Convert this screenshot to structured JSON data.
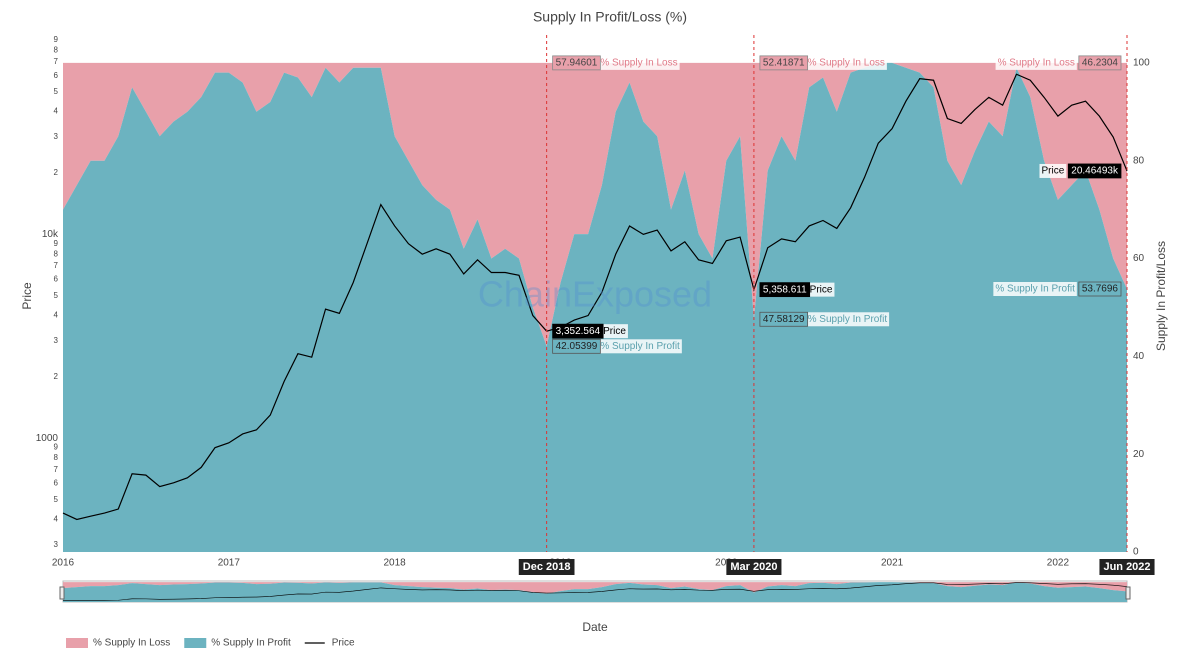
{
  "chart_data": {
    "type": "stacked-area-line",
    "title": "Supply In Profit/Loss (%)",
    "xlabel": "Date",
    "ylabel": "Price",
    "y2label": "Supply In Profit/Loss",
    "watermark": "ChainExposed",
    "legend": "bottom-left",
    "yscale": "log",
    "x": [
      "2016-01",
      "2016-02",
      "2016-03",
      "2016-04",
      "2016-05",
      "2016-06",
      "2016-07",
      "2016-08",
      "2016-09",
      "2016-10",
      "2016-11",
      "2016-12",
      "2017-01",
      "2017-02",
      "2017-03",
      "2017-04",
      "2017-05",
      "2017-06",
      "2017-07",
      "2017-08",
      "2017-09",
      "2017-10",
      "2017-11",
      "2017-12",
      "2018-01",
      "2018-02",
      "2018-03",
      "2018-04",
      "2018-05",
      "2018-06",
      "2018-07",
      "2018-08",
      "2018-09",
      "2018-10",
      "2018-11",
      "2018-12",
      "2019-01",
      "2019-02",
      "2019-03",
      "2019-04",
      "2019-05",
      "2019-06",
      "2019-07",
      "2019-08",
      "2019-09",
      "2019-10",
      "2019-11",
      "2019-12",
      "2020-01",
      "2020-02",
      "2020-03",
      "2020-04",
      "2020-05",
      "2020-06",
      "2020-07",
      "2020-08",
      "2020-09",
      "2020-10",
      "2020-11",
      "2020-12",
      "2021-01",
      "2021-02",
      "2021-03",
      "2021-04",
      "2021-05",
      "2021-06",
      "2021-07",
      "2021-08",
      "2021-09",
      "2021-10",
      "2021-11",
      "2021-12",
      "2022-01",
      "2022-02",
      "2022-03",
      "2022-04",
      "2022-05",
      "2022-06"
    ],
    "xlim": [
      "2016-01",
      "2022-06"
    ],
    "xticks": [
      "2016",
      "2017",
      "2018",
      "2019",
      "2020",
      "2021",
      "2022"
    ],
    "ylim": [
      277,
      95000
    ],
    "yticks": [
      {
        "value": 300,
        "label": "3"
      },
      {
        "value": 400,
        "label": "4"
      },
      {
        "value": 500,
        "label": "5"
      },
      {
        "value": 600,
        "label": "6"
      },
      {
        "value": 700,
        "label": "7"
      },
      {
        "value": 800,
        "label": "8"
      },
      {
        "value": 900,
        "label": "9"
      },
      1000,
      {
        "value": 2000,
        "label": "2"
      },
      {
        "value": 3000,
        "label": "3"
      },
      {
        "value": 4000,
        "label": "4"
      },
      {
        "value": 5000,
        "label": "5"
      },
      {
        "value": 6000,
        "label": "6"
      },
      {
        "value": 7000,
        "label": "7"
      },
      {
        "value": 8000,
        "label": "8"
      },
      {
        "value": 9000,
        "label": "9"
      },
      {
        "value": 10000,
        "label": "10k"
      },
      {
        "value": 20000,
        "label": "2"
      },
      {
        "value": 30000,
        "label": "3"
      },
      {
        "value": 40000,
        "label": "4"
      },
      {
        "value": 50000,
        "label": "5"
      },
      {
        "value": 60000,
        "label": "6"
      },
      {
        "value": 70000,
        "label": "7"
      },
      {
        "value": 80000,
        "label": "8"
      },
      {
        "value": 90000,
        "label": "9"
      }
    ],
    "y2lim": [
      0,
      105.7
    ],
    "y2ticks": [
      0,
      20,
      40,
      60,
      80,
      100
    ],
    "highlights": [
      {
        "x": "2018-12",
        "label": "Dec 2018"
      },
      {
        "x": "2020-03",
        "label": "Mar 2020"
      },
      {
        "x": "2022-06",
        "label": "Jun 2022"
      }
    ],
    "series": [
      {
        "name": "% Supply In Loss",
        "color": "#e8a0aa",
        "axis": "y2",
        "values": [
          30,
          25,
          20,
          20,
          15,
          5,
          10,
          15,
          12,
          10,
          7,
          2,
          2,
          4,
          10,
          8,
          2,
          3,
          7,
          1,
          4,
          1,
          1,
          1,
          15,
          20,
          25,
          28,
          30,
          38,
          32,
          40,
          38,
          40,
          50,
          57.94601,
          45,
          35,
          35,
          25,
          10,
          4,
          12,
          15,
          30,
          22,
          35,
          40,
          20,
          15,
          52.41871,
          22,
          15,
          20,
          5,
          3,
          10,
          2,
          1,
          0,
          0,
          1,
          2,
          5,
          20,
          25,
          18,
          12,
          15,
          1,
          7,
          20,
          28,
          25,
          22,
          30,
          40,
          46.2304
        ],
        "value_labels": [
          null,
          null,
          null,
          null,
          null,
          null,
          null,
          null,
          null,
          null,
          null,
          null,
          null,
          null,
          null,
          null,
          null,
          null,
          null,
          null,
          null,
          null,
          null,
          null,
          null,
          null,
          null,
          null,
          null,
          null,
          null,
          null,
          null,
          null,
          null,
          "57.94601",
          null,
          null,
          null,
          null,
          null,
          null,
          null,
          null,
          null,
          null,
          null,
          null,
          null,
          null,
          "52.41871",
          null,
          null,
          null,
          null,
          null,
          null,
          null,
          null,
          null,
          null,
          null,
          null,
          null,
          null,
          null,
          null,
          null,
          null,
          null,
          null,
          null,
          null,
          null,
          null,
          null,
          null,
          "46.2304"
        ]
      },
      {
        "name": "% Supply In Profit",
        "color": "#6cb3c0",
        "axis": "y2",
        "values": [
          70,
          75,
          80,
          80,
          85,
          95,
          90,
          85,
          88,
          90,
          93,
          98,
          98,
          96,
          90,
          92,
          98,
          97,
          93,
          99,
          96,
          99,
          99,
          99,
          85,
          80,
          75,
          72,
          70,
          62,
          68,
          60,
          62,
          60,
          50,
          42.05399,
          55,
          65,
          65,
          75,
          90,
          96,
          88,
          85,
          70,
          78,
          65,
          60,
          80,
          85,
          47.58129,
          78,
          85,
          80,
          95,
          97,
          90,
          98,
          99,
          100,
          100,
          99,
          98,
          95,
          80,
          75,
          82,
          88,
          85,
          99,
          93,
          80,
          72,
          75,
          78,
          70,
          60,
          53.7696
        ],
        "value_labels": [
          null,
          null,
          null,
          null,
          null,
          null,
          null,
          null,
          null,
          null,
          null,
          null,
          null,
          null,
          null,
          null,
          null,
          null,
          null,
          null,
          null,
          null,
          null,
          null,
          null,
          null,
          null,
          null,
          null,
          null,
          null,
          null,
          null,
          null,
          null,
          "42.05399",
          null,
          null,
          null,
          null,
          null,
          null,
          null,
          null,
          null,
          null,
          null,
          null,
          null,
          null,
          "47.58129",
          null,
          null,
          null,
          null,
          null,
          null,
          null,
          null,
          null,
          null,
          null,
          null,
          null,
          null,
          null,
          null,
          null,
          null,
          null,
          null,
          null,
          null,
          null,
          null,
          null,
          null,
          "53.7696"
        ]
      },
      {
        "name": "Price",
        "color": "#000000",
        "axis": "y",
        "values": [
          430,
          400,
          415,
          430,
          450,
          670,
          660,
          580,
          605,
          640,
          720,
          900,
          950,
          1050,
          1100,
          1300,
          1900,
          2600,
          2500,
          4300,
          4100,
          5800,
          9000,
          14000,
          11000,
          9000,
          8000,
          8500,
          8000,
          6400,
          7500,
          6500,
          6500,
          6300,
          4000,
          3352.564,
          3500,
          3800,
          4000,
          5200,
          8000,
          11000,
          10000,
          10500,
          8300,
          9200,
          7500,
          7200,
          9300,
          9700,
          5358.611,
          8600,
          9500,
          9200,
          11000,
          11700,
          10700,
          13500,
          19000,
          28000,
          33000,
          45000,
          58000,
          57000,
          37000,
          35000,
          41000,
          47000,
          43000,
          61000,
          57000,
          47000,
          38000,
          43000,
          45000,
          38000,
          30000,
          20464.93
        ],
        "value_labels": [
          null,
          null,
          null,
          null,
          null,
          null,
          null,
          null,
          null,
          null,
          null,
          null,
          null,
          null,
          null,
          null,
          null,
          null,
          null,
          null,
          null,
          null,
          null,
          null,
          null,
          null,
          null,
          null,
          null,
          null,
          null,
          null,
          null,
          null,
          null,
          "3,352.564",
          null,
          null,
          null,
          null,
          null,
          null,
          null,
          null,
          null,
          null,
          null,
          null,
          null,
          null,
          "5,358.611",
          null,
          null,
          null,
          null,
          null,
          null,
          null,
          null,
          null,
          null,
          null,
          null,
          null,
          null,
          null,
          null,
          null,
          null,
          null,
          null,
          null,
          null,
          null,
          null,
          null,
          null,
          "20.46493k"
        ]
      }
    ]
  }
}
